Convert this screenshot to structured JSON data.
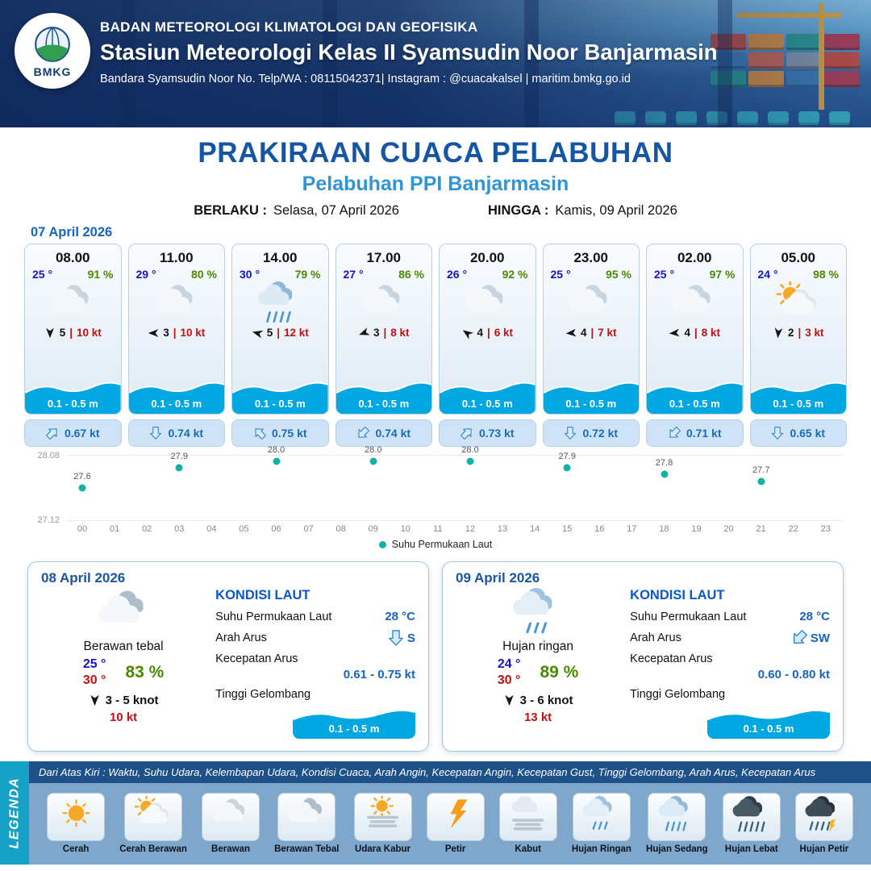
{
  "header": {
    "agency": "BADAN METEOROLOGI KLIMATOLOGI DAN GEOFISIKA",
    "station": "Stasiun Meteorologi Kelas II Syamsudin Noor Banjarmasin",
    "contact": "Bandara Syamsudin Noor No. Telp/WA : 08115042371| Instagram : @cuacakalsel | maritim.bmkg.go.id",
    "logo_text": "BMKG"
  },
  "title": {
    "main": "PRAKIRAAN CUACA PELABUHAN",
    "sub": "Pelabuhan PPI Banjarmasin",
    "valid_from_label": "BERLAKU :",
    "valid_from": "Selasa, 07 April 2026",
    "valid_to_label": "HINGGA :",
    "valid_to": "Kamis, 09 April 2026"
  },
  "forecast": {
    "date": "07 April 2026",
    "cards": [
      {
        "time": "08.00",
        "temp": "25 °",
        "humidity": "91 %",
        "icon": "berawan",
        "wind_dir_deg": 180,
        "wind_speed": "5",
        "wind_gust": "10 kt",
        "wave": "0.1 - 0.5 m",
        "current_dir_deg": 45,
        "current_speed": "0.67 kt"
      },
      {
        "time": "11.00",
        "temp": "29 °",
        "humidity": "80 %",
        "icon": "berawan",
        "wind_dir_deg": 270,
        "wind_speed": "3",
        "wind_gust": "10 kt",
        "wave": "0.1 - 0.5 m",
        "current_dir_deg": 180,
        "current_speed": "0.74 kt"
      },
      {
        "time": "14.00",
        "temp": "30 °",
        "humidity": "79 %",
        "icon": "hujan-sedang",
        "wind_dir_deg": 285,
        "wind_speed": "5",
        "wind_gust": "12 kt",
        "wave": "0.1 - 0.5 m",
        "current_dir_deg": 315,
        "current_speed": "0.75 kt"
      },
      {
        "time": "17.00",
        "temp": "27 °",
        "humidity": "86 %",
        "icon": "berawan",
        "wind_dir_deg": 250,
        "wind_speed": "3",
        "wind_gust": "8 kt",
        "wave": "0.1 - 0.5 m",
        "current_dir_deg": 225,
        "current_speed": "0.74 kt"
      },
      {
        "time": "20.00",
        "temp": "26 °",
        "humidity": "92 %",
        "icon": "berawan",
        "wind_dir_deg": 305,
        "wind_speed": "4",
        "wind_gust": "6 kt",
        "wave": "0.1 - 0.5 m",
        "current_dir_deg": 45,
        "current_speed": "0.73 kt"
      },
      {
        "time": "23.00",
        "temp": "25 °",
        "humidity": "95 %",
        "icon": "berawan",
        "wind_dir_deg": 265,
        "wind_speed": "4",
        "wind_gust": "7 kt",
        "wave": "0.1 - 0.5 m",
        "current_dir_deg": 180,
        "current_speed": "0.72 kt"
      },
      {
        "time": "02.00",
        "temp": "25 °",
        "humidity": "97 %",
        "icon": "berawan",
        "wind_dir_deg": 265,
        "wind_speed": "4",
        "wind_gust": "8 kt",
        "wave": "0.1 - 0.5 m",
        "current_dir_deg": 225,
        "current_speed": "0.71 kt"
      },
      {
        "time": "05.00",
        "temp": "24 °",
        "humidity": "98 %",
        "icon": "cerah-berawan",
        "wind_dir_deg": 185,
        "wind_speed": "2",
        "wind_gust": "3 kt",
        "wave": "0.1 - 0.5 m",
        "current_dir_deg": 180,
        "current_speed": "0.65 kt"
      }
    ]
  },
  "chart_data": {
    "type": "scatter",
    "series": [
      {
        "name": "Suhu Permukaan Laut",
        "x": [
          0,
          3,
          6,
          9,
          12,
          15,
          18,
          21
        ],
        "values": [
          27.6,
          27.9,
          28.0,
          28.0,
          28.0,
          27.9,
          27.8,
          27.7
        ]
      }
    ],
    "x_ticks": [
      "00",
      "01",
      "02",
      "03",
      "04",
      "05",
      "06",
      "07",
      "08",
      "09",
      "10",
      "11",
      "12",
      "13",
      "14",
      "15",
      "16",
      "17",
      "18",
      "19",
      "20",
      "21",
      "22",
      "23"
    ],
    "ylim": [
      27.12,
      28.08
    ],
    "y_ticks": [
      "28.08",
      "27.12"
    ],
    "legend": "Suhu Permukaan Laut",
    "dot_color": "#0fb3a6",
    "title": "",
    "xlabel": "",
    "ylabel": ""
  },
  "summaries": [
    {
      "date": "08 April 2026",
      "icon": "berawan-tebal",
      "condition": "Berawan tebal",
      "temp_min": "25 °",
      "temp_max": "30 °",
      "humidity": "83 %",
      "wind": "3  - 5 knot",
      "wind_gust": "10 kt",
      "sea": {
        "heading": "KONDISI LAUT",
        "sst_label": "Suhu Permukaan Laut",
        "sst": "28 °C",
        "current_dir_label": "Arah Arus",
        "current_dir": "S",
        "current_dir_deg": 180,
        "current_speed_label": "Kecepatan Arus",
        "current_speed": "0.61 - 0.75 kt",
        "wave_label": "Tinggi Gelombang",
        "wave": "0.1 - 0.5 m"
      }
    },
    {
      "date": "09 April 2026",
      "icon": "hujan-ringan",
      "condition": "Hujan ringan",
      "temp_min": "24 °",
      "temp_max": "30 °",
      "humidity": "89 %",
      "wind": "3  - 6 knot",
      "wind_gust": "13 kt",
      "sea": {
        "heading": "KONDISI LAUT",
        "sst_label": "Suhu Permukaan Laut",
        "sst": "28 °C",
        "current_dir_label": "Arah Arus",
        "current_dir": "SW",
        "current_dir_deg": 225,
        "current_speed_label": "Kecepatan Arus",
        "current_speed": "0.60 - 0.80 kt",
        "wave_label": "Tinggi Gelombang",
        "wave": "0.1 - 0.5 m"
      }
    }
  ],
  "legend": {
    "side_label": "LEGENDA",
    "description": "Dari Atas Kiri : Waktu, Suhu Udara, Kelembapan Udara, Kondisi Cuaca, Arah Angin, Kecepatan Angin, Kecepatan Gust, Tinggi Gelombang, Arah Arus, Kecepatan Arus",
    "items": [
      {
        "label": "Cerah",
        "icon": "cerah"
      },
      {
        "label": "Cerah Berawan",
        "icon": "cerah-berawan"
      },
      {
        "label": "Berawan",
        "icon": "berawan"
      },
      {
        "label": "Berawan Tebal",
        "icon": "berawan-tebal"
      },
      {
        "label": "Udara Kabur",
        "icon": "udara-kabur"
      },
      {
        "label": "Petir",
        "icon": "petir"
      },
      {
        "label": "Kabut",
        "icon": "kabut"
      },
      {
        "label": "Hujan Ringan",
        "icon": "hujan-ringan"
      },
      {
        "label": "Hujan Sedang",
        "icon": "hujan-sedang"
      },
      {
        "label": "Hujan Lebat",
        "icon": "hujan-lebat"
      },
      {
        "label": "Hujan Petir",
        "icon": "hujan-petir"
      }
    ]
  }
}
